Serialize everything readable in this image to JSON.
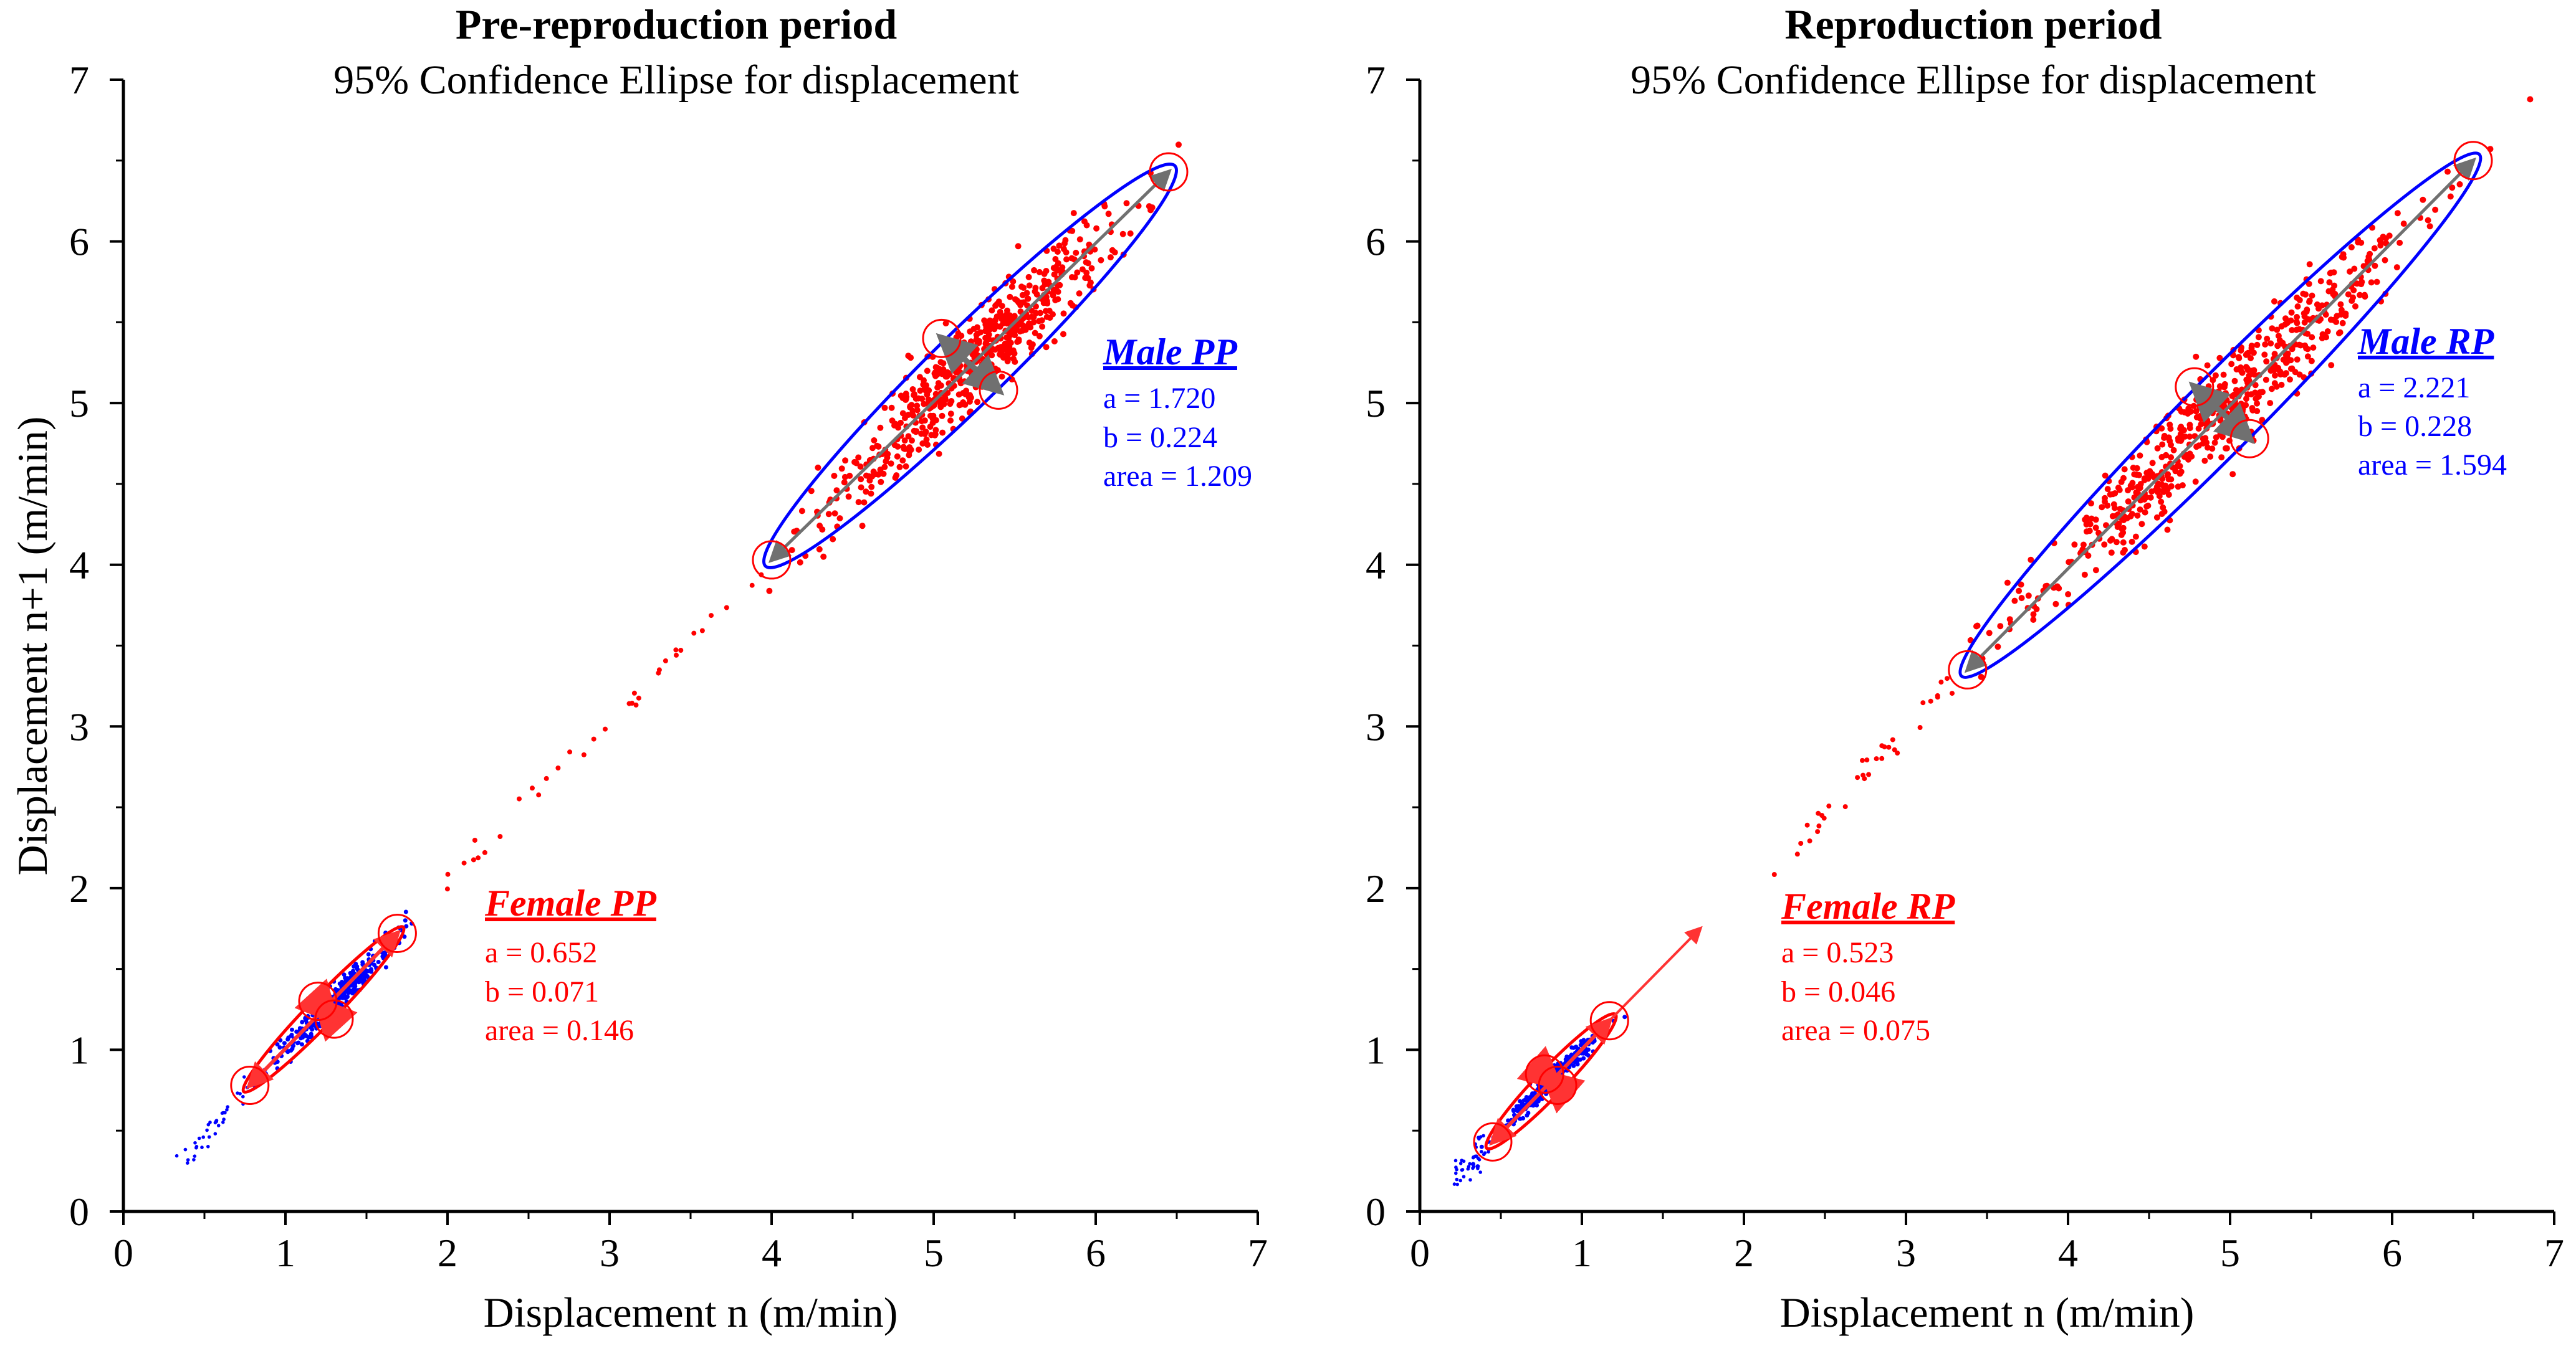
{
  "colors": {
    "female": "#ff0000",
    "male": "#0000ff",
    "axes": "#000000",
    "arrow": "#707070",
    "female_arrow": "#ff3333"
  },
  "chart_data": [
    {
      "type": "scatter",
      "title": "Pre-reproduction period",
      "subtitle": "95% Confidence Ellipse for displacement",
      "xlabel": "Displacement n (m/min)",
      "ylabel": "Displacement n+1 (m/min)",
      "xlim": [
        0,
        7
      ],
      "ylim": [
        0,
        7
      ],
      "xticks": [
        "0",
        "1",
        "2",
        "3",
        "4",
        "5",
        "6",
        "7"
      ],
      "yticks": [
        "0",
        "1",
        "2",
        "3",
        "4",
        "5",
        "6",
        "7"
      ],
      "groups": [
        {
          "label": "Female PP",
          "points_color": "blue",
          "ellipse_color": "red",
          "a": "a = 0.652",
          "b": "b = 0.071",
          "area": "area = 0.146",
          "cluster_center": [
            1.3,
            1.3
          ],
          "major_end_low": [
            0.78,
            0.78
          ],
          "major_end_high": [
            1.69,
            1.72
          ],
          "minor_ends": [
            [
              1.2,
              1.3
            ],
            [
              1.3,
              1.19
            ]
          ],
          "tail_from": [
            0.38,
            0.32
          ]
        },
        {
          "label": "Male PP",
          "points_color": "red",
          "ellipse_color": "blue",
          "a": "a = 1.720",
          "b": "b = 0.224",
          "area": "area = 1.209",
          "cluster_center": [
            5.25,
            5.25
          ],
          "major_end_low": [
            4.0,
            4.03
          ],
          "major_end_high": [
            6.45,
            6.43
          ],
          "minor_ends": [
            [
              5.05,
              5.4
            ],
            [
              5.4,
              5.08
            ]
          ],
          "tail_from": [
            2.0,
            2.05
          ]
        }
      ]
    },
    {
      "type": "scatter",
      "title": "Reproduction period",
      "subtitle": "95% Confidence Ellipse for displacement",
      "xlabel": "Displacement n (m/min)",
      "ylabel": "",
      "xlim": [
        0,
        7
      ],
      "ylim": [
        0,
        7
      ],
      "xticks": [
        "0",
        "1",
        "2",
        "3",
        "4",
        "5",
        "6",
        "7"
      ],
      "yticks": [
        "0",
        "1",
        "2",
        "3",
        "4",
        "5",
        "6",
        "7"
      ],
      "groups": [
        {
          "label": "Female RP",
          "points_color": "blue",
          "ellipse_color": "red",
          "a": "a = 0.523",
          "b": "b = 0.046",
          "area": "area = 0.075",
          "cluster_center": [
            0.8,
            0.8
          ],
          "major_end_low": [
            0.45,
            0.43
          ],
          "major_end_high": [
            1.17,
            1.18
          ],
          "minor_ends": [
            [
              0.77,
              0.85
            ],
            [
              0.85,
              0.78
            ]
          ],
          "tail_from": [
            0.2,
            0.18
          ],
          "extra_arrow_to": [
            1.73,
            1.75
          ]
        },
        {
          "label": "Male RP",
          "points_color": "red",
          "ellipse_color": "blue",
          "a": "a = 2.221",
          "b": "b = 0.228",
          "area": "area = 1.594",
          "cluster_center": [
            4.95,
            4.95
          ],
          "major_end_low": [
            3.38,
            3.35
          ],
          "major_end_high": [
            6.5,
            6.5
          ],
          "minor_ends": [
            [
              4.78,
              5.1
            ],
            [
              5.12,
              4.78
            ]
          ],
          "tail_from": [
            2.1,
            2.0
          ]
        }
      ]
    }
  ]
}
